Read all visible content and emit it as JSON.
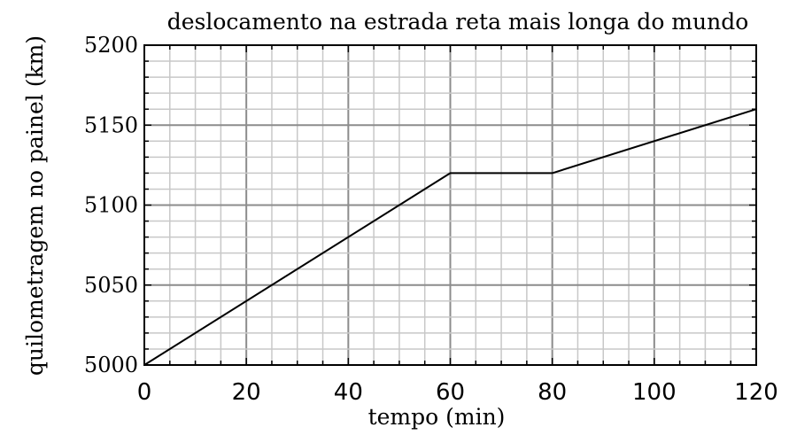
{
  "chart_data": {
    "type": "line",
    "title": "deslocamento na estrada reta mais longa do mundo",
    "xlabel": "tempo (min)",
    "ylabel": "quilometragem no painel (km)",
    "xlim": [
      0,
      120
    ],
    "ylim": [
      5000,
      5200
    ],
    "xticks": [
      "0",
      "20",
      "40",
      "60",
      "80",
      "100",
      "120"
    ],
    "yticks": [
      "5000",
      "5050",
      "5100",
      "5150",
      "5200"
    ],
    "x_minor_step": 5,
    "y_minor_step": 10,
    "grid": true,
    "series": [
      {
        "x": [
          0,
          60,
          80,
          120
        ],
        "values": [
          5000,
          5120,
          5120,
          5160
        ]
      }
    ]
  }
}
